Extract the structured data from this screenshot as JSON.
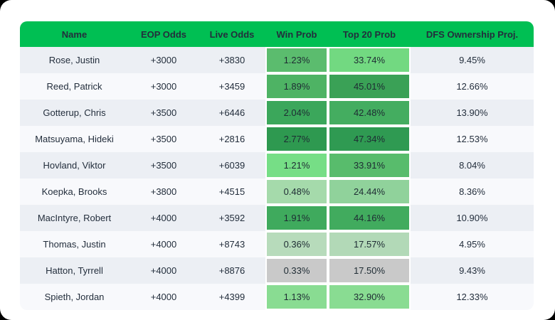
{
  "theme": {
    "page_bg": "#000000",
    "card_bg": "#FFFFFF",
    "header_bg": "#00BF53",
    "header_text": "#FFFFFF",
    "row_odd_bg": "#ECEFF4",
    "row_even_bg": "#F8F9FC",
    "body_text": "#232E3C",
    "neutral_heat": "#C9C9C9"
  },
  "table": {
    "columns": [
      {
        "key": "name",
        "label": "Name"
      },
      {
        "key": "eop",
        "label": "EOP Odds"
      },
      {
        "key": "live",
        "label": "Live Odds"
      },
      {
        "key": "win",
        "label": "Win Prob"
      },
      {
        "key": "top20",
        "label": "Top 20 Prob"
      },
      {
        "key": "dfs",
        "label": "DFS Ownership Proj."
      }
    ],
    "rows": [
      {
        "name": "Rose, Justin",
        "eop": "+3000",
        "live": "+3830",
        "win": "1.23%",
        "win_color": "#5BBC6E",
        "top20": "33.74%",
        "top20_color": "#72D981",
        "dfs": "9.45%"
      },
      {
        "name": "Reed, Patrick",
        "eop": "+3000",
        "live": "+3459",
        "win": "1.89%",
        "win_color": "#4EB364",
        "top20": "45.01%",
        "top20_color": "#3AA156",
        "dfs": "12.66%"
      },
      {
        "name": "Gotterup, Chris",
        "eop": "+3500",
        "live": "+6446",
        "win": "2.04%",
        "win_color": "#3BA75B",
        "top20": "42.48%",
        "top20_color": "#44AD60",
        "dfs": "13.90%"
      },
      {
        "name": "Matsuyama, Hideki",
        "eop": "+3500",
        "live": "+2816",
        "win": "2.77%",
        "win_color": "#2E9950",
        "top20": "47.34%",
        "top20_color": "#2F9A52",
        "dfs": "12.53%"
      },
      {
        "name": "Hovland, Viktor",
        "eop": "+3500",
        "live": "+6039",
        "win": "1.21%",
        "win_color": "#76DE86",
        "top20": "33.91%",
        "top20_color": "#58BC6C",
        "dfs": "8.04%"
      },
      {
        "name": "Koepka, Brooks",
        "eop": "+3800",
        "live": "+4515",
        "win": "0.48%",
        "win_color": "#A5DAAB",
        "top20": "24.44%",
        "top20_color": "#90D29B",
        "dfs": "8.36%"
      },
      {
        "name": "MacIntyre, Robert",
        "eop": "+4000",
        "live": "+3592",
        "win": "1.91%",
        "win_color": "#3FAA5D",
        "top20": "44.16%",
        "top20_color": "#41AB5E",
        "dfs": "10.90%"
      },
      {
        "name": "Thomas, Justin",
        "eop": "+4000",
        "live": "+8743",
        "win": "0.36%",
        "win_color": "#B7DBBB",
        "top20": "17.57%",
        "top20_color": "#B2D9B7",
        "dfs": "4.95%"
      },
      {
        "name": "Hatton, Tyrrell",
        "eop": "+4000",
        "live": "+8876",
        "win": "0.33%",
        "win_color": "#C9C9C9",
        "top20": "17.50%",
        "top20_color": "#C9C9C9",
        "dfs": "9.43%"
      },
      {
        "name": "Spieth, Jordan",
        "eop": "+4000",
        "live": "+4399",
        "win": "1.13%",
        "win_color": "#89DC92",
        "top20": "32.90%",
        "top20_color": "#89DC92",
        "dfs": "12.33%"
      }
    ]
  }
}
